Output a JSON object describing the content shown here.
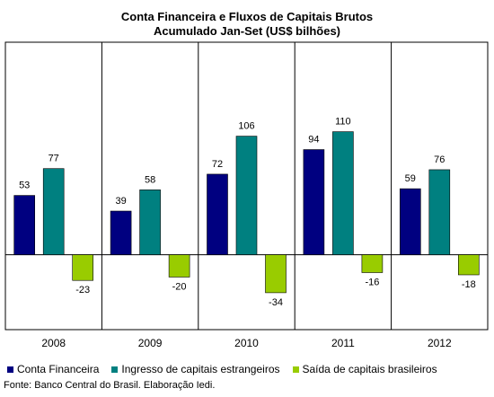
{
  "chart_data": {
    "type": "bar",
    "title": "Conta Financeira e Fluxos de Capitais Brutos",
    "subtitle": "Acumulado Jan-Set (US$ bilhões)",
    "categories": [
      "2008",
      "2009",
      "2010",
      "2011",
      "2012"
    ],
    "series": [
      {
        "name": "Conta Financeira",
        "color": "#000080",
        "values": [
          53,
          39,
          72,
          94,
          59
        ]
      },
      {
        "name": "Ingresso de capitais estrangeiros",
        "color": "#008080",
        "values": [
          77,
          58,
          106,
          110,
          76
        ]
      },
      {
        "name": "Saída de capitais brasileiros",
        "color": "#99CC00",
        "values": [
          -23,
          -20,
          -34,
          -16,
          -18
        ]
      }
    ],
    "ylim": [
      -67,
      190
    ],
    "grid": false,
    "legend_position": "bottom",
    "source": "Fonte: Banco Central do Brasil. Elaboração Iedi."
  }
}
